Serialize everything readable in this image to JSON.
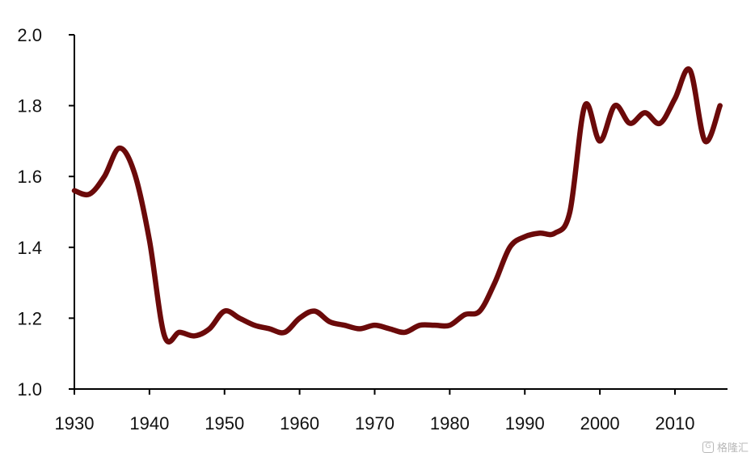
{
  "chart_data": {
    "type": "line",
    "title": "",
    "xlabel": "",
    "ylabel": "",
    "xlim": [
      1930,
      2017
    ],
    "ylim": [
      1.0,
      2.0
    ],
    "x_ticks": [
      "1930",
      "1940",
      "1950",
      "1960",
      "1970",
      "1980",
      "1990",
      "2000",
      "2010"
    ],
    "y_ticks": [
      "1.0",
      "1.2",
      "1.4",
      "1.6",
      "1.8",
      "2.0"
    ],
    "grid": false,
    "legend": "none",
    "line_color": "#6b0a0a",
    "series": [
      {
        "x": [
          1930,
          1932,
          1934,
          1936,
          1938,
          1940,
          1942,
          1944,
          1946,
          1948,
          1950,
          1952,
          1954,
          1956,
          1958,
          1960,
          1962,
          1964,
          1966,
          1968,
          1970,
          1972,
          1974,
          1976,
          1978,
          1980,
          1982,
          1984,
          1986,
          1988,
          1990,
          1992,
          1994,
          1996,
          1998,
          2000,
          2002,
          2004,
          2006,
          2008,
          2010,
          2012,
          2014,
          2016
        ],
        "values": [
          1.56,
          1.55,
          1.6,
          1.68,
          1.61,
          1.42,
          1.15,
          1.16,
          1.15,
          1.17,
          1.22,
          1.2,
          1.18,
          1.17,
          1.16,
          1.2,
          1.22,
          1.19,
          1.18,
          1.17,
          1.18,
          1.17,
          1.16,
          1.18,
          1.18,
          1.18,
          1.21,
          1.22,
          1.3,
          1.4,
          1.43,
          1.44,
          1.44,
          1.5,
          1.8,
          1.7,
          1.8,
          1.75,
          1.78,
          1.75,
          1.82,
          1.9,
          1.7,
          1.8
        ]
      }
    ]
  },
  "watermark": {
    "text": "格隆汇"
  }
}
